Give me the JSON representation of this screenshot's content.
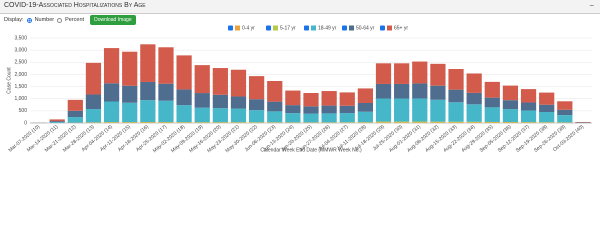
{
  "header": {
    "title": "COVID-19-Associated Hospitalizations By Age"
  },
  "controls": {
    "display_label": "Display:",
    "options": [
      "Number",
      "Percent"
    ],
    "button": "Download Image"
  },
  "chart_data": {
    "type": "stacked-bar",
    "x_label": "Calendar Week End Date (MMWR Week No.)",
    "y_label": "Case Count",
    "categories": [
      "Mar-07-2020 (10)",
      "Mar-14-2020 (11)",
      "Mar-21-2020 (12)",
      "Mar-28-2020 (13)",
      "Apr-04-2020 (14)",
      "Apr-11-2020 (15)",
      "Apr-18-2020 (16)",
      "Apr-25-2020 (17)",
      "May-02-2020 (18)",
      "May-09-2020 (19)",
      "May-16-2020 (20)",
      "May-23-2020 (21)",
      "May-30-2020 (22)",
      "Jun-06-2020 (23)",
      "Jun-13-2020 (24)",
      "Jun-20-2020 (25)",
      "Jun-27-2020 (26)",
      "Jul-04-2020 (27)",
      "Jul-11-2020 (28)",
      "Jul-18-2020 (29)",
      "Jul-25-2020 (30)",
      "Aug-01-2020 (31)",
      "Aug-08-2020 (32)",
      "Aug-15-2020 (33)",
      "Aug-22-2020 (34)",
      "Aug-29-2020 (35)",
      "Sep-05-2020 (36)",
      "Sep-12-2020 (37)",
      "Sep-19-2020 (38)",
      "Sep-26-2020 (39)",
      "Oct-03-2020 (40)"
    ],
    "series": [
      {
        "name": "0-4 yr",
        "color": "#e8a33d",
        "values": [
          0,
          2,
          8,
          15,
          20,
          20,
          22,
          20,
          18,
          18,
          18,
          18,
          16,
          15,
          14,
          14,
          14,
          15,
          18,
          28,
          28,
          28,
          26,
          25,
          24,
          22,
          20,
          18,
          16,
          12,
          1
        ]
      },
      {
        "name": "5-17 yr",
        "color": "#b5c94a",
        "values": [
          0,
          1,
          5,
          10,
          15,
          15,
          18,
          18,
          16,
          15,
          15,
          15,
          14,
          14,
          12,
          12,
          12,
          14,
          16,
          30,
          30,
          32,
          30,
          28,
          26,
          22,
          20,
          18,
          16,
          12,
          1
        ]
      },
      {
        "name": "18-49 yr",
        "color": "#45b7c9",
        "values": [
          3,
          35,
          230,
          550,
          850,
          800,
          900,
          880,
          700,
          600,
          580,
          560,
          500,
          450,
          380,
          360,
          370,
          380,
          430,
          950,
          950,
          950,
          900,
          800,
          720,
          600,
          530,
          480,
          420,
          300,
          10
        ]
      },
      {
        "name": "50-64 yr",
        "color": "#4f6d8f",
        "values": [
          3,
          40,
          260,
          600,
          750,
          700,
          750,
          700,
          650,
          600,
          550,
          500,
          450,
          400,
          330,
          300,
          320,
          300,
          360,
          600,
          600,
          620,
          580,
          520,
          470,
          400,
          370,
          330,
          300,
          220,
          10
        ]
      },
      {
        "name": "65+ yr",
        "color": "#d35b4c",
        "values": [
          4,
          70,
          450,
          1300,
          1450,
          1400,
          1550,
          1500,
          1400,
          1150,
          1100,
          1100,
          950,
          850,
          600,
          550,
          600,
          550,
          600,
          850,
          850,
          900,
          900,
          850,
          800,
          650,
          600,
          550,
          500,
          350,
          20
        ]
      }
    ],
    "ylim": [
      0,
      3500
    ],
    "yticks": [
      0,
      500,
      {
        "value": 1000,
        "label": "1,000"
      },
      {
        "value": 1500,
        "label": "1,500"
      },
      {
        "value": 2000,
        "label": "2,000"
      },
      {
        "value": 2500,
        "label": "2,500"
      },
      {
        "value": 3000,
        "label": "3,000"
      },
      {
        "value": 3500,
        "label": "3,500"
      }
    ],
    "grid": true
  }
}
